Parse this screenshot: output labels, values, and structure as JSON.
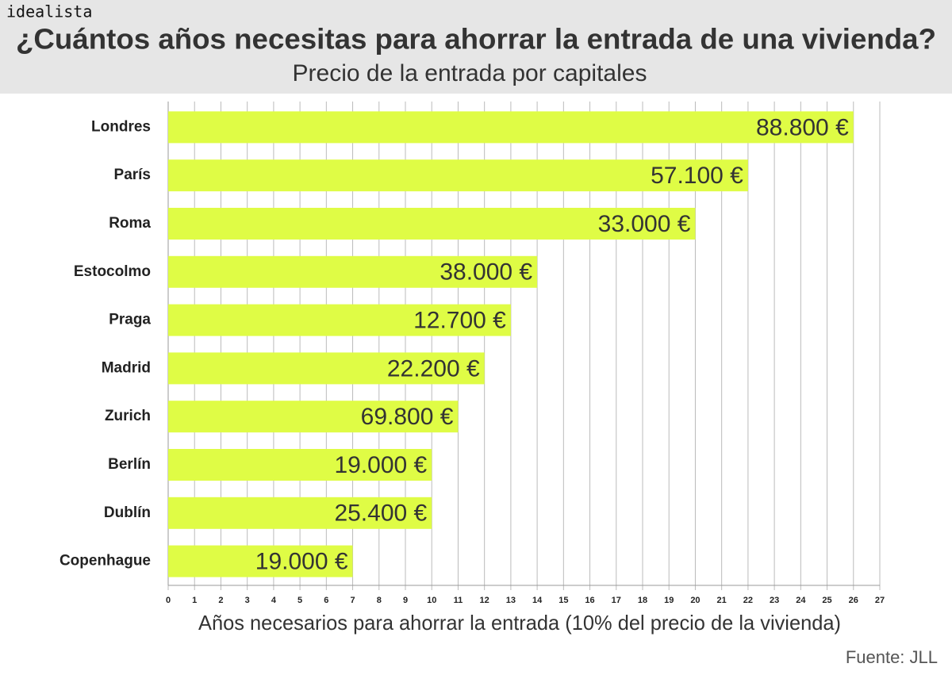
{
  "brand": "idealista",
  "source": "Fuente: JLL",
  "chart_data": {
    "type": "hbar",
    "title": "¿Cuántos años necesitas para ahorrar la entrada de una vivienda?",
    "subtitle": "Precio de la entrada por capitales",
    "x_label": "Años necesarios para ahorrar la entrada (10% del precio de la vivienda)",
    "categories": [
      "Londres",
      "París",
      "Roma",
      "Estocolmo",
      "Praga",
      "Madrid",
      "Zurich",
      "Berlín",
      "Dublín",
      "Copenhague"
    ],
    "values": [
      26,
      22,
      20,
      14,
      13,
      12,
      11,
      10,
      10,
      7
    ],
    "bar_labels": [
      "88.800 €",
      "57.100 €",
      "33.000 €",
      "38.000 €",
      "12.700 €",
      "22.200 €",
      "69.800 €",
      "19.000 €",
      "25.400 €",
      "19.000 €"
    ],
    "color": "#dffc45",
    "xlim": [
      0,
      27
    ],
    "xticks": [
      0,
      1,
      2,
      3,
      4,
      5,
      6,
      7,
      8,
      9,
      10,
      11,
      12,
      13,
      14,
      15,
      16,
      17,
      18,
      19,
      20,
      21,
      22,
      23,
      24,
      25,
      26,
      27
    ],
    "grid": true
  }
}
